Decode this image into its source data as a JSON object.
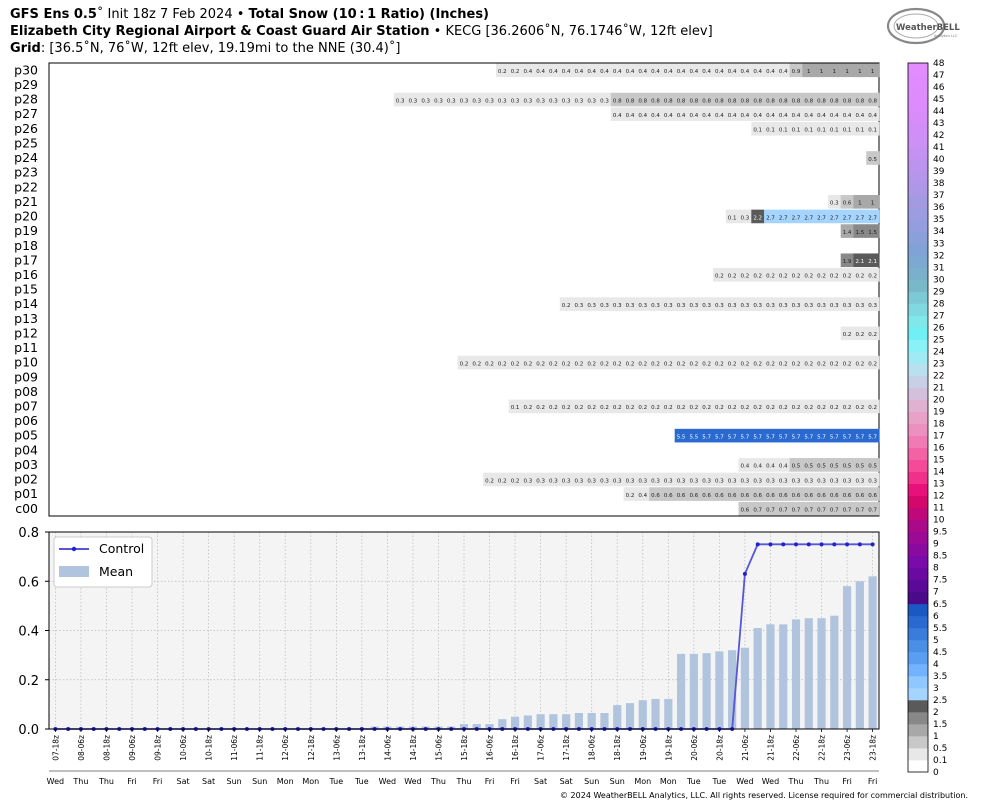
{
  "header": {
    "model": "GFS Ens 0.5",
    "init_prefix": "Init",
    "init": "18z 7 Feb 2024",
    "product": "Total Snow (10 : 1 Ratio) (Inches)",
    "station_name": "Elizabeth City Regional Airport & Coast Guard Air Station",
    "station_info": "KECG [36.2606˚N, 76.1746˚W, 12ft elev]",
    "grid_label": "Grid",
    "grid_info": "[36.5˚N, 76˚W, 12ft elev, 19.19mi to the NNE (30.4)˚]"
  },
  "logo": {
    "line1": "WeatherBELL",
    "line2": "Analytics LLC"
  },
  "footer": "© 2024 WeatherBELL Analytics, LLC. All rights reserved. License required for commercial distribution.",
  "colors": {
    "control_line": "#5656d6",
    "mean_bar": "#b0c4de",
    "plot_bg": "#f4f4f4"
  },
  "chart_data": [
    {
      "type": "heatmap",
      "title": "Total Snow (10 : 1 Ratio) (Inches)",
      "rows": [
        "p30",
        "p29",
        "p28",
        "p27",
        "p26",
        "p25",
        "p24",
        "p23",
        "p22",
        "p21",
        "p20",
        "p19",
        "p18",
        "p17",
        "p16",
        "p15",
        "p14",
        "p13",
        "p12",
        "p11",
        "p10",
        "p09",
        "p08",
        "p07",
        "p06",
        "p05",
        "p04",
        "p03",
        "p02",
        "p01",
        "c00"
      ],
      "time_steps": 65,
      "members": [
        {
          "row": "p30",
          "start": 35,
          "values": [
            0.2,
            0.2,
            0.4,
            0.4,
            0.4,
            0.4,
            0.4,
            0.4,
            0.4,
            0.4,
            0.4,
            0.4,
            0.4,
            0.4,
            0.4,
            0.4,
            0.4,
            0.4,
            0.4,
            0.4,
            0.4,
            0.4,
            0.4,
            0.9,
            1,
            1,
            1,
            1,
            1,
            1
          ]
        },
        {
          "row": "p28",
          "start": 27,
          "values": [
            0.3,
            0.3,
            0.3,
            0.3,
            0.3,
            0.3,
            0.3,
            0.3,
            0.3,
            0.3,
            0.3,
            0.3,
            0.3,
            0.3,
            0.3,
            0.3,
            0.3,
            0.8,
            0.8,
            0.8,
            0.8,
            0.8,
            0.8,
            0.8,
            0.8,
            0.8,
            0.8,
            0.8,
            0.8,
            0.8,
            0.8,
            0.8,
            0.8,
            0.8,
            0.8,
            0.8,
            0.8,
            0.8
          ]
        },
        {
          "row": "p27",
          "start": 44,
          "values": [
            0.4,
            0.4,
            0.4,
            0.4,
            0.4,
            0.4,
            0.4,
            0.4,
            0.4,
            0.4,
            0.4,
            0.4,
            0.4,
            0.4,
            0.4,
            0.4,
            0.4,
            0.4,
            0.4,
            0.4,
            0.4
          ]
        },
        {
          "row": "p26",
          "start": 55,
          "values": [
            0.1,
            0.1,
            0.1,
            0.1,
            0.1,
            0.1,
            0.1,
            0.1,
            0.1,
            0.1
          ]
        },
        {
          "row": "p24",
          "start": 64,
          "values": [
            0.5
          ]
        },
        {
          "row": "p21",
          "start": 61,
          "values": [
            0.3,
            0.6,
            1,
            1
          ]
        },
        {
          "row": "p20",
          "start": 53,
          "values": [
            0.1,
            0.3,
            2.2,
            2.7,
            2.7,
            2.7,
            2.7,
            2.7,
            2.7,
            2.7,
            2.7,
            2.7
          ]
        },
        {
          "row": "p19",
          "start": 62,
          "values": [
            1.4,
            1.5,
            1.5
          ]
        },
        {
          "row": "p17",
          "start": 62,
          "values": [
            1.9,
            2.1,
            2.1
          ]
        },
        {
          "row": "p16",
          "start": 52,
          "values": [
            0.2,
            0.2,
            0.2,
            0.2,
            0.2,
            0.2,
            0.2,
            0.2,
            0.2,
            0.2,
            0.2,
            0.2,
            0.2
          ]
        },
        {
          "row": "p14",
          "start": 40,
          "values": [
            0.2,
            0.3,
            0.3,
            0.3,
            0.3,
            0.3,
            0.3,
            0.3,
            0.3,
            0.3,
            0.3,
            0.3,
            0.3,
            0.3,
            0.3,
            0.3,
            0.3,
            0.3,
            0.3,
            0.3,
            0.3,
            0.3,
            0.3,
            0.3,
            0.3
          ]
        },
        {
          "row": "p12",
          "start": 62,
          "values": [
            0.2,
            0.2,
            0.2
          ]
        },
        {
          "row": "p10",
          "start": 32,
          "values": [
            0.2,
            0.2,
            0.2,
            0.2,
            0.2,
            0.2,
            0.2,
            0.2,
            0.2,
            0.2,
            0.2,
            0.2,
            0.2,
            0.2,
            0.2,
            0.2,
            0.2,
            0.2,
            0.2,
            0.2,
            0.2,
            0.2,
            0.2,
            0.2,
            0.2,
            0.2,
            0.2,
            0.2,
            0.2,
            0.2,
            0.2,
            0.2,
            0.2
          ]
        },
        {
          "row": "p07",
          "start": 36,
          "values": [
            0.1,
            0.2,
            0.2,
            0.2,
            0.2,
            0.2,
            0.2,
            0.2,
            0.2,
            0.2,
            0.2,
            0.2,
            0.2,
            0.2,
            0.2,
            0.2,
            0.2,
            0.2,
            0.2,
            0.2,
            0.2,
            0.2,
            0.2,
            0.2,
            0.2,
            0.2,
            0.2,
            0.2,
            0.2
          ]
        },
        {
          "row": "p05",
          "start": 49,
          "values": [
            5.5,
            5.5,
            5.7,
            5.7,
            5.7,
            5.7,
            5.7,
            5.7,
            5.7,
            5.7,
            5.7,
            5.7,
            5.7,
            5.7,
            5.7,
            5.7
          ]
        },
        {
          "row": "p03",
          "start": 54,
          "values": [
            0.4,
            0.4,
            0.4,
            0.4,
            0.5,
            0.5,
            0.5,
            0.5,
            0.5,
            0.5,
            0.5
          ]
        },
        {
          "row": "p02",
          "start": 34,
          "values": [
            0.2,
            0.2,
            0.2,
            0.3,
            0.3,
            0.3,
            0.3,
            0.3,
            0.3,
            0.3,
            0.3,
            0.3,
            0.3,
            0.3,
            0.3,
            0.3,
            0.3,
            0.3,
            0.3,
            0.3,
            0.3,
            0.3,
            0.3,
            0.3,
            0.3,
            0.3,
            0.3,
            0.3,
            0.3,
            0.3,
            0.3
          ]
        },
        {
          "row": "p01",
          "start": 45,
          "values": [
            0.2,
            0.4,
            0.6,
            0.6,
            0.6,
            0.6,
            0.6,
            0.6,
            0.6,
            0.6,
            0.6,
            0.6,
            0.6,
            0.6,
            0.6,
            0.6,
            0.6,
            0.6,
            0.6,
            0.6
          ]
        },
        {
          "row": "c00",
          "start": 54,
          "values": [
            0.6,
            0.7,
            0.7,
            0.7,
            0.7,
            0.7,
            0.7,
            0.7,
            0.7,
            0.7,
            0.7
          ]
        }
      ],
      "colorbar": {
        "labels": [
          "0",
          "0.1",
          "0.5",
          "1",
          "1.5",
          "2",
          "2.5",
          "3",
          "3.5",
          "4",
          "4.5",
          "5",
          "5.5",
          "6",
          "6.5",
          "7",
          "7.5",
          "8",
          "8.5",
          "9",
          "9.5",
          "10",
          "11",
          "12",
          "13",
          "14",
          "15",
          "16",
          "17",
          "18",
          "19",
          "20",
          "21",
          "22",
          "23",
          "24",
          "25",
          "26",
          "27",
          "28",
          "29",
          "30",
          "31",
          "32",
          "33",
          "34",
          "35",
          "36",
          "37",
          "38",
          "39",
          "40",
          "41",
          "42",
          "43",
          "44",
          "45",
          "46",
          "47",
          "48"
        ],
        "colors": [
          "#ffffff",
          "#e8e8e8",
          "#c8c8c8",
          "#a8a8a8",
          "#888888",
          "#5a5a5a",
          "#a5d4ff",
          "#8ec8ff",
          "#72b2ff",
          "#5a9ef2",
          "#4a8ee6",
          "#3a7cdc",
          "#2a6ad0",
          "#1a58c4",
          "#4a0a8a",
          "#5a0a96",
          "#6a0aa0",
          "#7a0aaa",
          "#8a0aa0",
          "#9a0a96",
          "#aa0a8a",
          "#c0087a",
          "#d4086a",
          "#e8107a",
          "#f0308a",
          "#f44a98",
          "#f462a6",
          "#f07ab4",
          "#ec90c0",
          "#e8a2c8",
          "#e0b2d2",
          "#d4c0dc",
          "#c8d0e6",
          "#b8e0ee",
          "#a0eaf4",
          "#88f2f8",
          "#70f0f4",
          "#80e8ea",
          "#80d8e0",
          "#7cc8d4",
          "#78b8c8",
          "#7ab0cc",
          "#7ca8d2",
          "#80a2d6",
          "#8aa0da",
          "#949ede",
          "#9c9ce0",
          "#a49ae2",
          "#ac98e6",
          "#b496ea",
          "#bc94ee",
          "#c492f2",
          "#cc90f6",
          "#d28ef8",
          "#d88cfa",
          "#dc8cfc",
          "#de8cfc",
          "#e08cfe",
          "#e28cfe"
        ]
      }
    },
    {
      "type": "bar",
      "ylim": [
        0,
        0.8
      ],
      "yticks": [
        "0.0",
        "0.2",
        "0.4",
        "0.6",
        "0.8"
      ],
      "legend": [
        "Control",
        "Mean"
      ],
      "legend_placement": "top-left",
      "grid": true,
      "x_labels": [
        "07-18z",
        "08-06z",
        "08-18z",
        "09-06z",
        "09-18z",
        "10-06z",
        "10-18z",
        "11-06z",
        "11-18z",
        "12-06z",
        "12-18z",
        "13-06z",
        "13-18z",
        "14-06z",
        "14-18z",
        "15-06z",
        "15-18z",
        "16-06z",
        "16-18z",
        "17-06z",
        "17-18z",
        "18-06z",
        "18-18z",
        "19-06z",
        "19-18z",
        "20-06z",
        "20-18z",
        "21-06z",
        "21-18z",
        "22-06z",
        "22-18z",
        "23-06z",
        "23-18z"
      ],
      "day_labels": [
        "Wed",
        "Thu",
        "Thu",
        "Fri",
        "Fri",
        "Sat",
        "Sat",
        "Sun",
        "Sun",
        "Mon",
        "Mon",
        "Tue",
        "Tue",
        "Wed",
        "Wed",
        "Thu",
        "Thu",
        "Fri",
        "Fri",
        "Sat",
        "Sat",
        "Sun",
        "Sun",
        "Mon",
        "Mon",
        "Tue",
        "Tue",
        "Wed",
        "Wed",
        "Thu",
        "Thu",
        "Fri",
        "Fri"
      ],
      "series": [
        {
          "name": "Control",
          "values": [
            0,
            0,
            0,
            0,
            0,
            0,
            0,
            0,
            0,
            0,
            0,
            0,
            0,
            0,
            0,
            0,
            0,
            0,
            0,
            0,
            0,
            0,
            0,
            0,
            0,
            0,
            0,
            0,
            0,
            0,
            0,
            0,
            0,
            0,
            0,
            0,
            0,
            0,
            0,
            0,
            0,
            0,
            0,
            0,
            0,
            0,
            0,
            0,
            0,
            0,
            0,
            0,
            0,
            0,
            0.63,
            0.75,
            0.75,
            0.75,
            0.75,
            0.75,
            0.75,
            0.75,
            0.75,
            0.75,
            0.75
          ]
        },
        {
          "name": "Mean",
          "values": [
            0,
            0,
            0,
            0,
            0,
            0,
            0,
            0,
            0,
            0,
            0,
            0,
            0,
            0,
            0,
            0,
            0,
            0,
            0,
            0,
            0,
            0,
            0,
            0,
            0,
            0.01,
            0.01,
            0.01,
            0.01,
            0.01,
            0.01,
            0.01,
            0.02,
            0.02,
            0.02,
            0.04,
            0.05,
            0.055,
            0.06,
            0.06,
            0.06,
            0.065,
            0.065,
            0.065,
            0.097,
            0.105,
            0.117,
            0.122,
            0.122,
            0.305,
            0.305,
            0.308,
            0.315,
            0.32,
            0.33,
            0.41,
            0.425,
            0.425,
            0.445,
            0.45,
            0.45,
            0.46,
            0.58,
            0.6,
            0.62
          ]
        }
      ]
    }
  ]
}
